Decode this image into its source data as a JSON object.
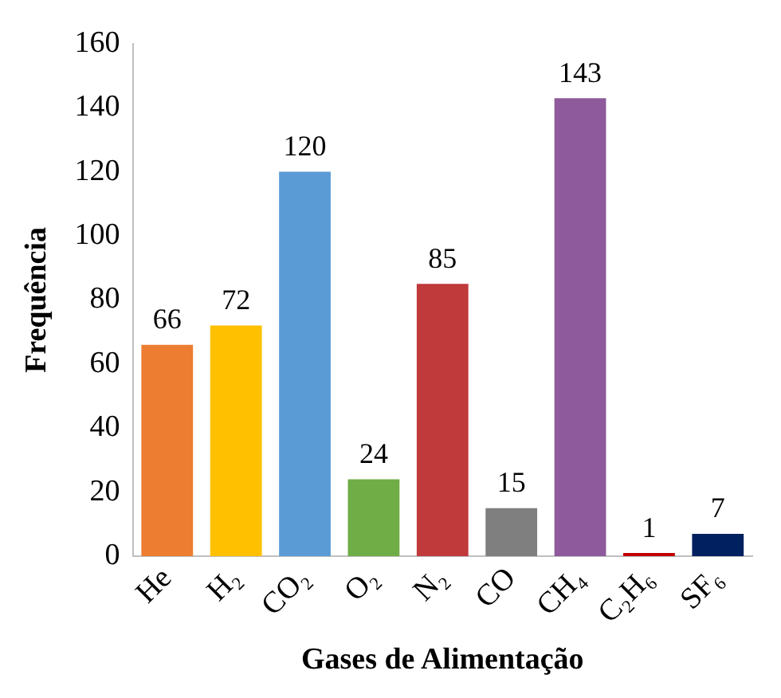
{
  "chart_data": {
    "type": "bar",
    "xlabel": "Gases de Alimentação",
    "ylabel": "Frequência",
    "categories": [
      "He",
      "H₂",
      "CO₂",
      "O₂",
      "N₂",
      "CO",
      "CH₄",
      "C₂H₆",
      "SF₆"
    ],
    "values": [
      66,
      72,
      120,
      24,
      85,
      15,
      143,
      1,
      7
    ],
    "colors": [
      "#ed7d31",
      "#ffc000",
      "#5b9bd5",
      "#70ad47",
      "#c0393b",
      "#7f7f7f",
      "#8e5a9b",
      "#c00000",
      "#002060"
    ],
    "ylim": [
      0,
      160
    ],
    "yticks": [
      0,
      20,
      40,
      60,
      80,
      100,
      120,
      140,
      160
    ],
    "grid": false,
    "legend": false,
    "data_labels": true
  }
}
